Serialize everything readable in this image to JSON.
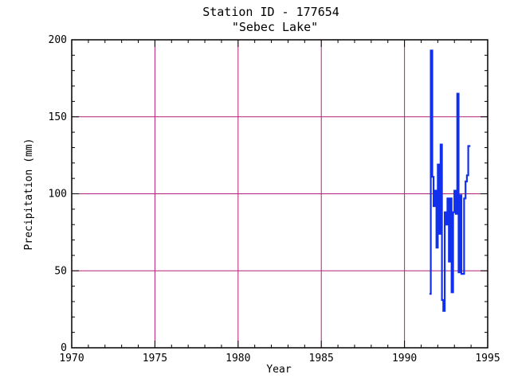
{
  "chart_data": {
    "type": "line",
    "title": "Station ID - 177654",
    "subtitle": "\"Sebec Lake\"",
    "xlabel": "Year",
    "ylabel": "Precipitation (mm)",
    "xlim": [
      1970,
      1995
    ],
    "ylim": [
      0,
      200
    ],
    "xticks": [
      1970,
      1975,
      1980,
      1985,
      1990,
      1995
    ],
    "yticks": [
      0,
      50,
      100,
      150,
      200
    ],
    "grid": true,
    "colors": {
      "series": "#1030ee",
      "grid": "#b0207a",
      "axis": "#000000"
    },
    "series": [
      {
        "step": true,
        "x": [
          1991.5,
          1991.58,
          1991.67,
          1991.75,
          1991.83,
          1991.92,
          1992.0,
          1992.08,
          1992.17,
          1992.25,
          1992.33,
          1992.42,
          1992.5,
          1992.58,
          1992.67,
          1992.75,
          1992.83,
          1992.92,
          1993.0,
          1993.08,
          1993.17,
          1993.25,
          1993.33,
          1993.42,
          1993.5,
          1993.58,
          1993.67,
          1993.75,
          1993.83,
          1993.92
        ],
        "y": [
          35,
          193,
          111,
          92,
          102,
          65,
          119,
          74,
          132,
          31,
          24,
          88,
          80,
          97,
          56,
          97,
          36,
          88,
          102,
          87,
          165,
          49,
          99,
          48,
          48,
          97,
          108,
          112,
          131,
          131
        ]
      }
    ]
  }
}
